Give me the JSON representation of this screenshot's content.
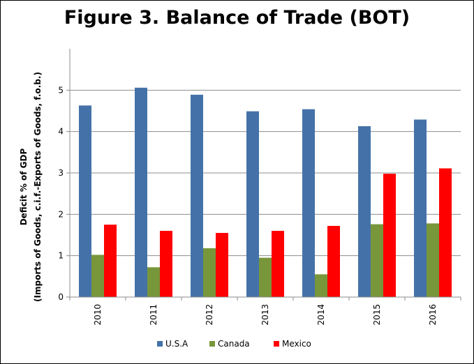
{
  "chart_data": {
    "type": "bar",
    "title": "Figure 3. Balance of Trade (BOT)",
    "ylabel_line1": "Deficit % of GDP",
    "ylabel_line2": "(Imports of Goods, c.i.f.-Exports of Goods, f.o.b.)",
    "xlabel": "",
    "ylim": [
      0,
      6
    ],
    "yticks": [
      0,
      1,
      2,
      3,
      4,
      5
    ],
    "grid": true,
    "legend_position": "bottom",
    "categories": [
      "2010",
      "2011",
      "2012",
      "2013",
      "2014",
      "2015",
      "2016"
    ],
    "series": [
      {
        "name": "U.S.A",
        "color": "#4472a8",
        "values": [
          4.63,
          5.06,
          4.89,
          4.49,
          4.54,
          4.13,
          4.29
        ]
      },
      {
        "name": "Canada",
        "color": "#78963a",
        "values": [
          1.02,
          0.72,
          1.18,
          0.95,
          0.55,
          1.76,
          1.78
        ]
      },
      {
        "name": "Mexico",
        "color": "#ff0000",
        "values": [
          1.75,
          1.6,
          1.55,
          1.6,
          1.72,
          2.98,
          3.11
        ]
      }
    ]
  }
}
